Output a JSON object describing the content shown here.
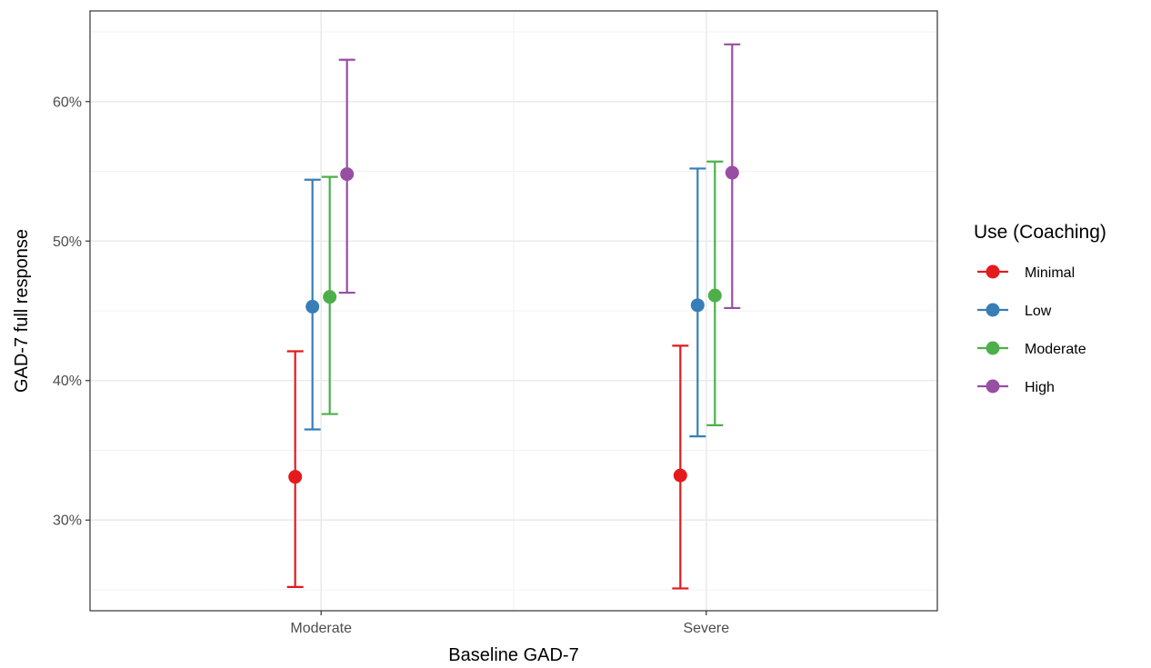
{
  "chart_data": {
    "type": "scatter",
    "xlabel": "Baseline GAD-7",
    "ylabel": "GAD-7 full response",
    "categories": [
      "Moderate",
      "Severe"
    ],
    "ylim": [
      23.5,
      66.5
    ],
    "y_ticks": [
      30,
      40,
      50,
      60
    ],
    "y_tick_labels": [
      "30%",
      "40%",
      "50%",
      "60%"
    ],
    "grid": true,
    "legend": {
      "title": "Use (Coaching)",
      "position": "right"
    },
    "series": [
      {
        "name": "Minimal",
        "color": "#E41A1C",
        "values": [
          33.1,
          33.2
        ],
        "lower": [
          25.2,
          25.1
        ],
        "upper": [
          42.1,
          42.5
        ]
      },
      {
        "name": "Low",
        "color": "#377EB8",
        "values": [
          45.3,
          45.4
        ],
        "lower": [
          36.5,
          36.0
        ],
        "upper": [
          54.4,
          55.2
        ]
      },
      {
        "name": "Moderate",
        "color": "#4DAF4A",
        "values": [
          46.0,
          46.1
        ],
        "lower": [
          37.6,
          36.8
        ],
        "upper": [
          54.6,
          55.7
        ]
      },
      {
        "name": "High",
        "color": "#984EA3",
        "values": [
          54.8,
          54.9
        ],
        "lower": [
          46.3,
          45.2
        ],
        "upper": [
          63.0,
          64.1
        ]
      }
    ]
  }
}
